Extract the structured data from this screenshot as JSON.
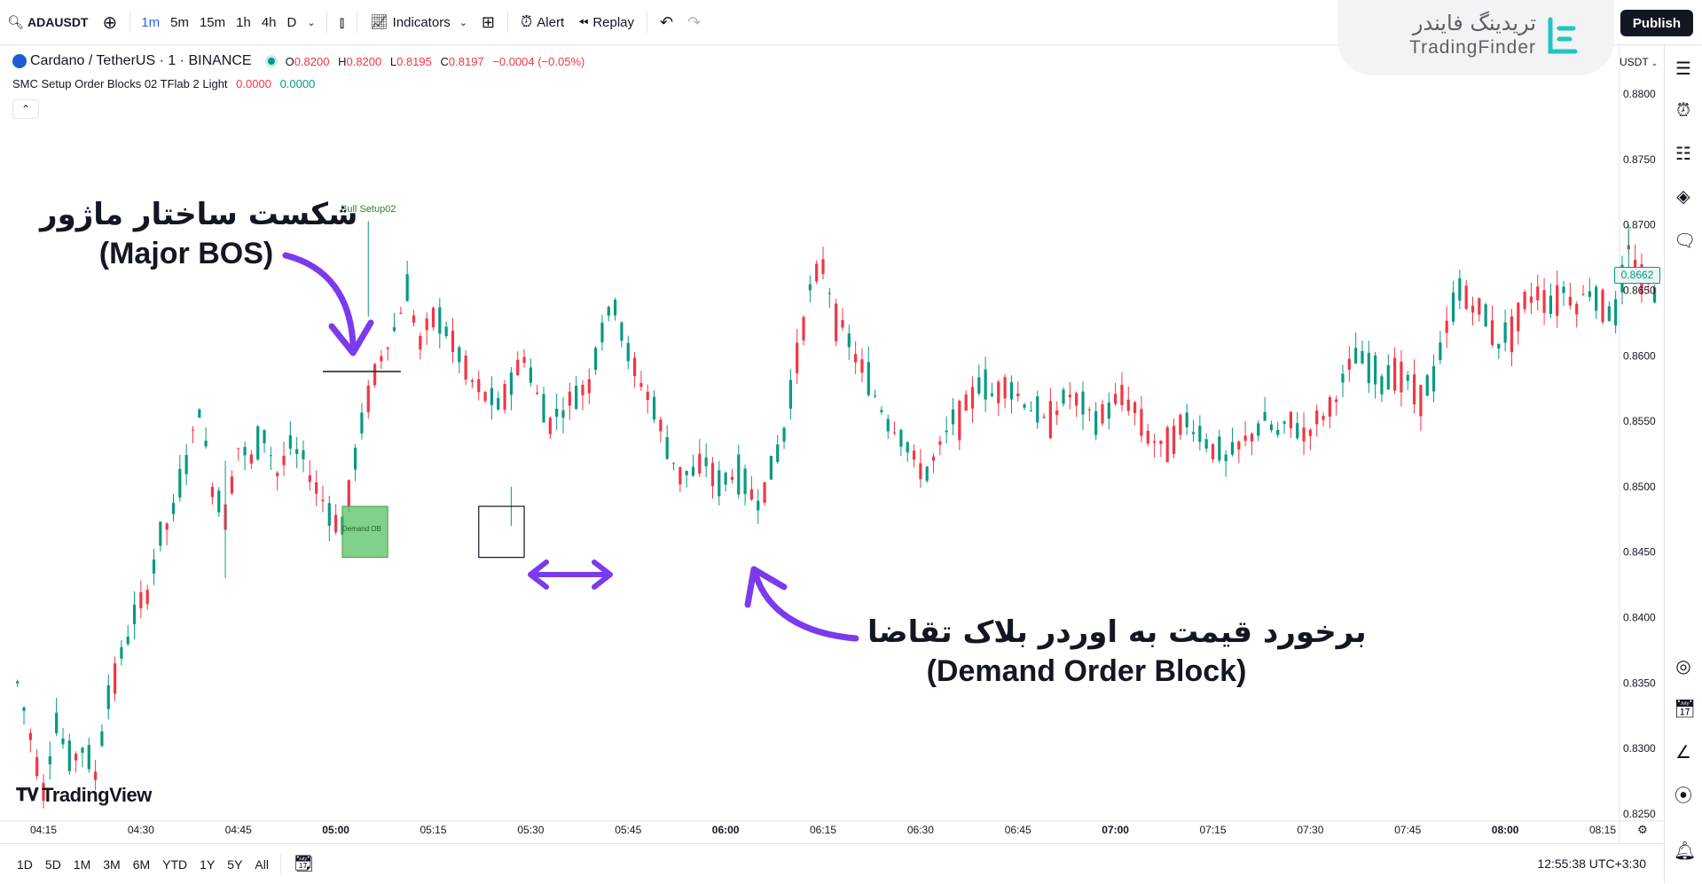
{
  "toolbar": {
    "symbol": "ADAUSDT",
    "intervals": [
      "1m",
      "5m",
      "15m",
      "1h",
      "4h",
      "D"
    ],
    "active_interval": "1m",
    "indicators_label": "Indicators",
    "alert_label": "Alert",
    "replay_label": "Replay",
    "publish_label": "Publish"
  },
  "watermark": {
    "fa": "تریدینگ فایندر",
    "en": "TradingFinder"
  },
  "legend": {
    "title": "Cardano / TetherUS · 1 · BINANCE",
    "o_label": "O",
    "o": "0.8200",
    "h_label": "H",
    "h": "0.8200",
    "l_label": "L",
    "l": "0.8195",
    "c_label": "C",
    "c": "0.8197",
    "change": "−0.0004 (−0.05%)",
    "indicator": "SMC Setup Order Blocks 02 TFlab 2 Light",
    "ind_v1": "0.0000",
    "ind_v2": "0.0000"
  },
  "price_axis": {
    "currency": "USDT",
    "current_price": "0.8662"
  },
  "bottom": {
    "ranges": [
      "1D",
      "5D",
      "1M",
      "3M",
      "6M",
      "YTD",
      "1Y",
      "5Y",
      "All"
    ],
    "clock": "12:55:38 UTC+3:30"
  },
  "branding": {
    "tradingview": "TradingView"
  },
  "annotations": {
    "bos_fa": "شکست ساختار ماژور",
    "bos_en": "(Major BOS)",
    "demand_fa": "برخورد قیمت به اوردر بلاک تقاضا",
    "demand_en": "(Demand Order Block)"
  },
  "chart_data": {
    "type": "candlestick",
    "title": "Cardano / TetherUS · 1 · BINANCE",
    "x_ticks": [
      "04:15",
      "04:30",
      "04:45",
      "05:00",
      "05:15",
      "05:30",
      "05:45",
      "06:00",
      "06:15",
      "06:30",
      "06:45",
      "07:00",
      "07:15",
      "07:30",
      "07:45",
      "08:00",
      "08:15",
      "08:"
    ],
    "x_range_minutes": [
      250,
      504
    ],
    "y_ticks": [
      "0.8800",
      "0.8750",
      "0.8700",
      "0.8650",
      "0.8600",
      "0.8550",
      "0.8500",
      "0.8450",
      "0.8400",
      "0.8350",
      "0.8300",
      "0.8250"
    ],
    "ylim": [
      0.825,
      0.88
    ],
    "close_path": [
      [
        251,
        0.835
      ],
      [
        253,
        0.831
      ],
      [
        255,
        0.827
      ],
      [
        257,
        0.832
      ],
      [
        259,
        0.829
      ],
      [
        261,
        0.83
      ],
      [
        263,
        0.828
      ],
      [
        265,
        0.834
      ],
      [
        267,
        0.837
      ],
      [
        269,
        0.84
      ],
      [
        271,
        0.842
      ],
      [
        273,
        0.846
      ],
      [
        275,
        0.848
      ],
      [
        277,
        0.852
      ],
      [
        279,
        0.856
      ],
      [
        281,
        0.85
      ],
      [
        283,
        0.848
      ],
      [
        285,
        0.853
      ],
      [
        287,
        0.852
      ],
      [
        289,
        0.854
      ],
      [
        291,
        0.851
      ],
      [
        293,
        0.853
      ],
      [
        295,
        0.852
      ],
      [
        297,
        0.85
      ],
      [
        299,
        0.848
      ],
      [
        301,
        0.847
      ],
      [
        303,
        0.852
      ],
      [
        305,
        0.857
      ],
      [
        307,
        0.86
      ],
      [
        309,
        0.862
      ],
      [
        311,
        0.865
      ],
      [
        313,
        0.861
      ],
      [
        315,
        0.863
      ],
      [
        317,
        0.862
      ],
      [
        319,
        0.86
      ],
      [
        321,
        0.858
      ],
      [
        323,
        0.857
      ],
      [
        325,
        0.856
      ],
      [
        327,
        0.858
      ],
      [
        329,
        0.86
      ],
      [
        331,
        0.857
      ],
      [
        333,
        0.855
      ],
      [
        335,
        0.856
      ],
      [
        337,
        0.857
      ],
      [
        339,
        0.858
      ],
      [
        341,
        0.862
      ],
      [
        343,
        0.864
      ],
      [
        345,
        0.86
      ],
      [
        347,
        0.858
      ],
      [
        349,
        0.856
      ],
      [
        351,
        0.853
      ],
      [
        353,
        0.851
      ],
      [
        355,
        0.851
      ],
      [
        357,
        0.852
      ],
      [
        359,
        0.85
      ],
      [
        361,
        0.851
      ],
      [
        363,
        0.85
      ],
      [
        365,
        0.849
      ],
      [
        367,
        0.851
      ],
      [
        369,
        0.854
      ],
      [
        371,
        0.86
      ],
      [
        373,
        0.865
      ],
      [
        375,
        0.867
      ],
      [
        377,
        0.863
      ],
      [
        379,
        0.861
      ],
      [
        381,
        0.859
      ],
      [
        383,
        0.857
      ],
      [
        385,
        0.855
      ],
      [
        387,
        0.854
      ],
      [
        389,
        0.852
      ],
      [
        391,
        0.851
      ],
      [
        393,
        0.853
      ],
      [
        395,
        0.855
      ],
      [
        397,
        0.856
      ],
      [
        399,
        0.858
      ],
      [
        401,
        0.857
      ],
      [
        403,
        0.858
      ],
      [
        405,
        0.857
      ],
      [
        407,
        0.856
      ],
      [
        409,
        0.855
      ],
      [
        411,
        0.856
      ],
      [
        413,
        0.857
      ],
      [
        415,
        0.856
      ],
      [
        417,
        0.855
      ],
      [
        419,
        0.856
      ],
      [
        421,
        0.857
      ],
      [
        423,
        0.856
      ],
      [
        425,
        0.854
      ],
      [
        427,
        0.853
      ],
      [
        429,
        0.854
      ],
      [
        431,
        0.855
      ],
      [
        433,
        0.854
      ],
      [
        435,
        0.853
      ],
      [
        437,
        0.852
      ],
      [
        439,
        0.853
      ],
      [
        441,
        0.854
      ],
      [
        443,
        0.855
      ],
      [
        445,
        0.854
      ],
      [
        447,
        0.855
      ],
      [
        449,
        0.854
      ],
      [
        451,
        0.855
      ],
      [
        453,
        0.856
      ],
      [
        455,
        0.858
      ],
      [
        457,
        0.86
      ],
      [
        459,
        0.859
      ],
      [
        461,
        0.858
      ],
      [
        463,
        0.859
      ],
      [
        465,
        0.858
      ],
      [
        467,
        0.857
      ],
      [
        469,
        0.858
      ],
      [
        471,
        0.862
      ],
      [
        473,
        0.865
      ],
      [
        475,
        0.864
      ],
      [
        477,
        0.863
      ],
      [
        479,
        0.861
      ],
      [
        481,
        0.862
      ],
      [
        483,
        0.864
      ],
      [
        485,
        0.865
      ],
      [
        487,
        0.864
      ],
      [
        489,
        0.865
      ],
      [
        491,
        0.864
      ],
      [
        493,
        0.865
      ],
      [
        495,
        0.864
      ],
      [
        497,
        0.863
      ],
      [
        499,
        0.868
      ],
      [
        501,
        0.866
      ],
      [
        503,
        0.865
      ]
    ],
    "annotations": [
      {
        "text": "Bull Setup02",
        "x": 305,
        "y": 0.871
      },
      {
        "text": "Demand OB",
        "x": 304,
        "y": 0.8466
      }
    ],
    "bos_level": {
      "x_start": 298,
      "x_end": 310,
      "y": 0.8588
    },
    "demand_ob": {
      "x_start": 301,
      "x_end": 308,
      "y_top": 0.8485,
      "y_bottom": 0.8446
    },
    "retest_box": {
      "x_start": 322,
      "x_end": 329,
      "y_top": 0.8485,
      "y_bottom": 0.8446
    },
    "grid": false,
    "legend": "top-left"
  }
}
